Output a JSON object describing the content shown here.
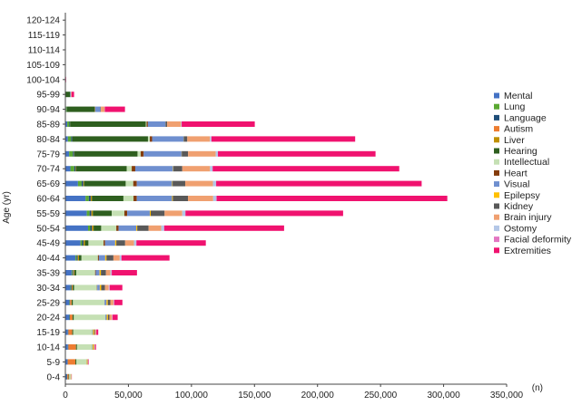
{
  "chart_data": {
    "type": "bar",
    "orientation": "horizontal",
    "stacked": true,
    "title": "",
    "xlabel": "(n)",
    "ylabel": "Age (yr)",
    "xlim": [
      0,
      350000
    ],
    "x_ticks": [
      0,
      50000,
      100000,
      150000,
      200000,
      250000,
      300000,
      350000
    ],
    "x_tick_labels": [
      "0",
      "50,000",
      "100,000",
      "150,000",
      "200,000",
      "250,000",
      "300,000",
      "350,000"
    ],
    "grid": false,
    "legend_position": "right",
    "categories": [
      "0-4",
      "5-9",
      "10-14",
      "15-19",
      "20-24",
      "25-29",
      "30-34",
      "35-39",
      "40-44",
      "45-49",
      "50-54",
      "55-59",
      "60-64",
      "65-69",
      "70-74",
      "75-79",
      "80-84",
      "85-89",
      "90-94",
      "95-99",
      "100-104",
      "105-109",
      "110-114",
      "115-119",
      "120-124"
    ],
    "series": [
      {
        "name": "Mental",
        "color": "#4472c4",
        "values": [
          1000,
          1500,
          2000,
          2000,
          3000,
          3000,
          4000,
          5000,
          8000,
          12000,
          18000,
          17000,
          16000,
          10000,
          4000,
          3000,
          2000,
          1500,
          500,
          100,
          10,
          0,
          0,
          0,
          0
        ]
      },
      {
        "name": "Lung",
        "color": "#5aa832",
        "values": [
          50,
          50,
          100,
          100,
          200,
          300,
          400,
          600,
          900,
          1300,
          1800,
          2200,
          2600,
          2900,
          3100,
          3000,
          2600,
          1700,
          600,
          100,
          10,
          0,
          0,
          0,
          0
        ]
      },
      {
        "name": "Language",
        "color": "#1f4e79",
        "values": [
          500,
          400,
          300,
          300,
          400,
          500,
          600,
          700,
          900,
          1100,
          1300,
          1400,
          1500,
          1300,
          1100,
          1000,
          800,
          500,
          200,
          50,
          5,
          0,
          0,
          0,
          0
        ]
      },
      {
        "name": "Autism",
        "color": "#ed7d31",
        "values": [
          1000,
          6000,
          6000,
          3000,
          2000,
          1000,
          500,
          300,
          200,
          100,
          100,
          100,
          50,
          50,
          30,
          20,
          10,
          5,
          0,
          0,
          0,
          0,
          0,
          0,
          0
        ]
      },
      {
        "name": "Liver",
        "color": "#bf9000",
        "values": [
          20,
          20,
          30,
          50,
          100,
          200,
          300,
          500,
          800,
          1000,
          1200,
          1100,
          900,
          600,
          400,
          200,
          100,
          50,
          10,
          0,
          0,
          0,
          0,
          0,
          0
        ]
      },
      {
        "name": "Hearing",
        "color": "#2e5f1f",
        "values": [
          500,
          800,
          800,
          800,
          1000,
          1000,
          1200,
          1500,
          2000,
          2800,
          6000,
          15000,
          25000,
          33000,
          40000,
          50000,
          60000,
          60000,
          22000,
          3500,
          200,
          20,
          0,
          0,
          0
        ]
      },
      {
        "name": "Intellectual",
        "color": "#c5e0b4",
        "values": [
          1000,
          8000,
          12000,
          15000,
          25000,
          25000,
          18000,
          15000,
          13000,
          12000,
          12000,
          10000,
          8000,
          6000,
          4000,
          2500,
          1500,
          700,
          200,
          30,
          5,
          0,
          0,
          0,
          0
        ]
      },
      {
        "name": "Heart",
        "color": "#843c0c",
        "values": [
          20,
          20,
          30,
          40,
          80,
          150,
          300,
          500,
          800,
          1200,
          1800,
          2200,
          2600,
          2800,
          2800,
          2400,
          1800,
          1000,
          300,
          50,
          5,
          0,
          0,
          0,
          0
        ]
      },
      {
        "name": "Visual",
        "color": "#6f8fcf",
        "values": [
          100,
          200,
          400,
          600,
          1000,
          1500,
          2000,
          3000,
          5000,
          8000,
          14000,
          18000,
          28000,
          28000,
          30000,
          30000,
          25000,
          14000,
          4000,
          500,
          50,
          5,
          0,
          0,
          0
        ]
      },
      {
        "name": "Epilepsy",
        "color": "#ffc000",
        "values": [
          300,
          500,
          800,
          900,
          1000,
          1000,
          1100,
          1100,
          1000,
          900,
          800,
          700,
          600,
          400,
          300,
          200,
          100,
          50,
          10,
          0,
          0,
          0,
          0,
          0,
          0
        ]
      },
      {
        "name": "Kidney",
        "color": "#595959",
        "values": [
          100,
          200,
          300,
          600,
          1200,
          2000,
          3000,
          4000,
          5500,
          7000,
          9000,
          11000,
          12000,
          10000,
          7000,
          5000,
          2800,
          1200,
          300,
          50,
          5,
          0,
          0,
          0,
          0
        ]
      },
      {
        "name": "Brain injury",
        "color": "#f0a070",
        "values": [
          300,
          400,
          600,
          900,
          2000,
          2500,
          3000,
          3500,
          5000,
          7000,
          10000,
          14000,
          20000,
          22000,
          22000,
          22000,
          18000,
          11000,
          3000,
          500,
          50,
          5,
          0,
          0,
          0
        ]
      },
      {
        "name": "Ostomy",
        "color": "#b4c7e7",
        "values": [
          20,
          30,
          50,
          80,
          200,
          300,
          500,
          800,
          1200,
          1700,
          2200,
          2400,
          2500,
          2400,
          2000,
          1600,
          1100,
          500,
          150,
          20,
          0,
          0,
          0,
          0,
          0
        ]
      },
      {
        "name": "Facial deformity",
        "color": "#e377c2",
        "values": [
          100,
          200,
          200,
          200,
          300,
          300,
          300,
          300,
          300,
          300,
          300,
          200,
          200,
          150,
          100,
          100,
          50,
          30,
          10,
          0,
          0,
          0,
          0,
          0,
          0
        ]
      },
      {
        "name": "Extremities",
        "color": "#f0126f",
        "values": [
          100,
          300,
          700,
          1500,
          4000,
          6500,
          10000,
          20000,
          38000,
          55000,
          95000,
          125000,
          183000,
          163000,
          148000,
          125000,
          114000,
          58000,
          16000,
          2000,
          200,
          20,
          0,
          0,
          0
        ]
      }
    ]
  }
}
